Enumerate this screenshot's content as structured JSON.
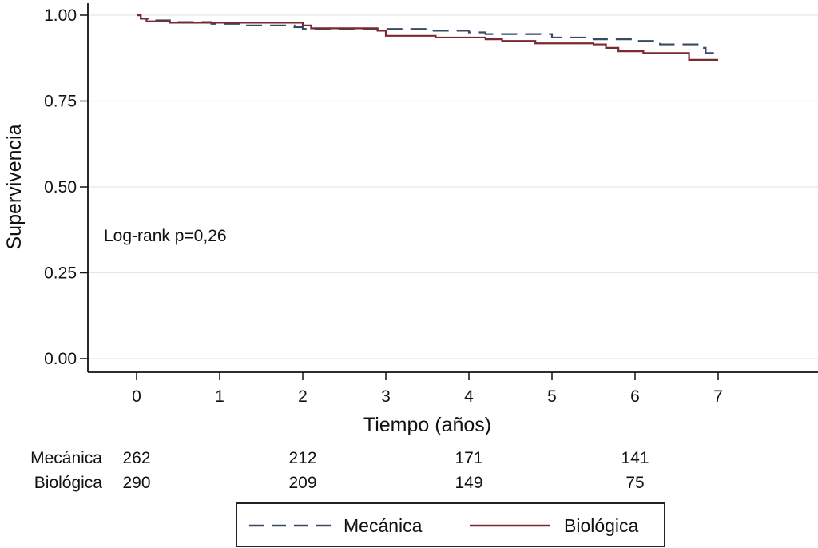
{
  "chart_data": {
    "type": "line",
    "subtype": "kaplan-meier",
    "title": "",
    "xlabel": "Tiempo (años)",
    "ylabel": "Supervivencia",
    "xlim": [
      -0.6,
      8.2
    ],
    "ylim": [
      0,
      1
    ],
    "x_ticks": [
      "0",
      "1",
      "2",
      "3",
      "4",
      "5",
      "6",
      "7"
    ],
    "y_ticks": [
      "0.00",
      "0.25",
      "0.50",
      "0.75",
      "1.00"
    ],
    "grid": true,
    "annotation": "Log-rank p=0,26",
    "legend_position": "bottom",
    "series": [
      {
        "name": "Mecánica",
        "color": "#3a4a66",
        "style": "dashed",
        "points": [
          [
            0,
            1.0
          ],
          [
            0.05,
            0.99
          ],
          [
            0.2,
            0.985
          ],
          [
            0.4,
            0.98
          ],
          [
            0.9,
            0.975
          ],
          [
            1.3,
            0.97
          ],
          [
            1.9,
            0.965
          ],
          [
            2.0,
            0.96
          ],
          [
            2.8,
            0.96
          ],
          [
            3.5,
            0.955
          ],
          [
            4.0,
            0.95
          ],
          [
            4.2,
            0.945
          ],
          [
            5.0,
            0.935
          ],
          [
            5.5,
            0.93
          ],
          [
            6.0,
            0.925
          ],
          [
            6.3,
            0.915
          ],
          [
            6.8,
            0.905
          ],
          [
            6.85,
            0.89
          ],
          [
            7.0,
            0.88
          ]
        ]
      },
      {
        "name": "Biológica",
        "color": "#7a2a2e",
        "style": "solid",
        "points": [
          [
            0,
            1.0
          ],
          [
            0.05,
            0.99
          ],
          [
            0.12,
            0.982
          ],
          [
            0.4,
            0.978
          ],
          [
            1.7,
            0.978
          ],
          [
            2.0,
            0.97
          ],
          [
            2.1,
            0.962
          ],
          [
            2.9,
            0.955
          ],
          [
            3.0,
            0.94
          ],
          [
            3.6,
            0.935
          ],
          [
            4.2,
            0.93
          ],
          [
            4.4,
            0.925
          ],
          [
            4.8,
            0.918
          ],
          [
            5.5,
            0.915
          ],
          [
            5.65,
            0.905
          ],
          [
            5.8,
            0.895
          ],
          [
            6.1,
            0.89
          ],
          [
            6.65,
            0.87
          ],
          [
            7.0,
            0.87
          ]
        ]
      }
    ],
    "risk_table": {
      "times": [
        0,
        2,
        4,
        6
      ],
      "rows": [
        {
          "label": "Mecánica",
          "values": [
            "262",
            "212",
            "171",
            "141"
          ]
        },
        {
          "label": "Biológica",
          "values": [
            "290",
            "209",
            "149",
            "75"
          ]
        }
      ]
    }
  }
}
